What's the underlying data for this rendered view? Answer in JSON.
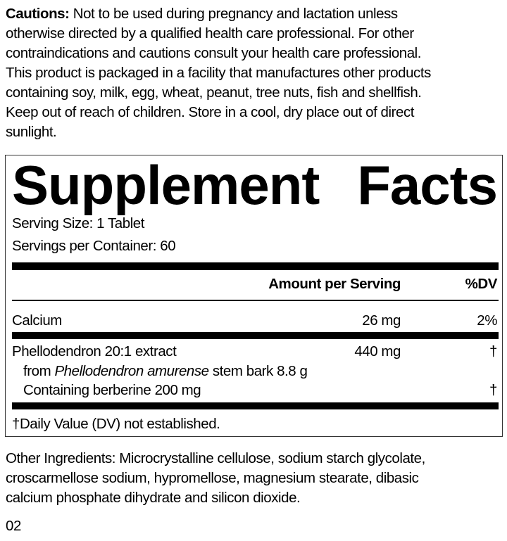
{
  "cautions": {
    "label": "Cautions:",
    "lines": [
      " Not to be used during pregnancy and lactation unless",
      "otherwise directed by a qualified health care professional. For other",
      "contraindications and cautions consult your health care professional.",
      "This product is packaged in a facility that manufactures other products",
      "containing soy, milk, egg, wheat, peanut, tree nuts, fish and shellfish.",
      "Keep out of reach of children. Store in a cool, dry place out of direct",
      "sunlight."
    ]
  },
  "facts": {
    "title_word1": "Supplement",
    "title_word2": "Facts",
    "serving_size": "Serving Size: 1 Tablet",
    "servings_per_container": "Servings per Container: 60",
    "header_amount": "Amount per Serving",
    "header_dv": "%DV",
    "calcium": {
      "name": "Calcium",
      "amount": "26 mg",
      "dv": "2%"
    },
    "phellodendron": {
      "name": "Phellodendron 20:1 extract",
      "amount": "440 mg",
      "dv": "†",
      "from_prefix": "from ",
      "from_species": "Phellodendron amurense",
      "from_suffix": " stem bark 8.8 g",
      "containing": "Containing berberine 200 mg",
      "containing_dv": "†"
    },
    "footnote": "†Daily Value (DV) not established."
  },
  "other_ingredients": [
    "Other Ingredients: Microcrystalline cellulose, sodium starch glycolate,",
    "croscarmellose sodium, hypromellose, magnesium stearate, dibasic",
    "calcium phosphate dihydrate and silicon dioxide."
  ],
  "code": "02"
}
